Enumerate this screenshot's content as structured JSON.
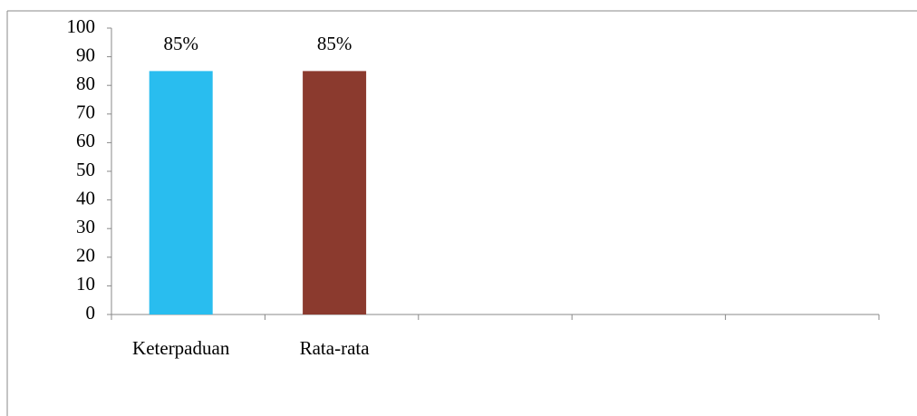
{
  "chart_data": {
    "type": "bar",
    "categories": [
      "Keterpaduan",
      "Rata-rata",
      null,
      null,
      null
    ],
    "values": [
      85,
      85,
      null,
      null,
      null
    ],
    "value_labels": [
      "85%",
      "85%",
      null,
      null,
      null
    ],
    "colors": [
      "#29bdef",
      "#8b3a2e",
      null,
      null,
      null
    ],
    "ylim": [
      0,
      100
    ],
    "yticks": [
      0,
      10,
      20,
      30,
      40,
      50,
      60,
      70,
      80,
      90,
      100
    ],
    "grid": false
  }
}
